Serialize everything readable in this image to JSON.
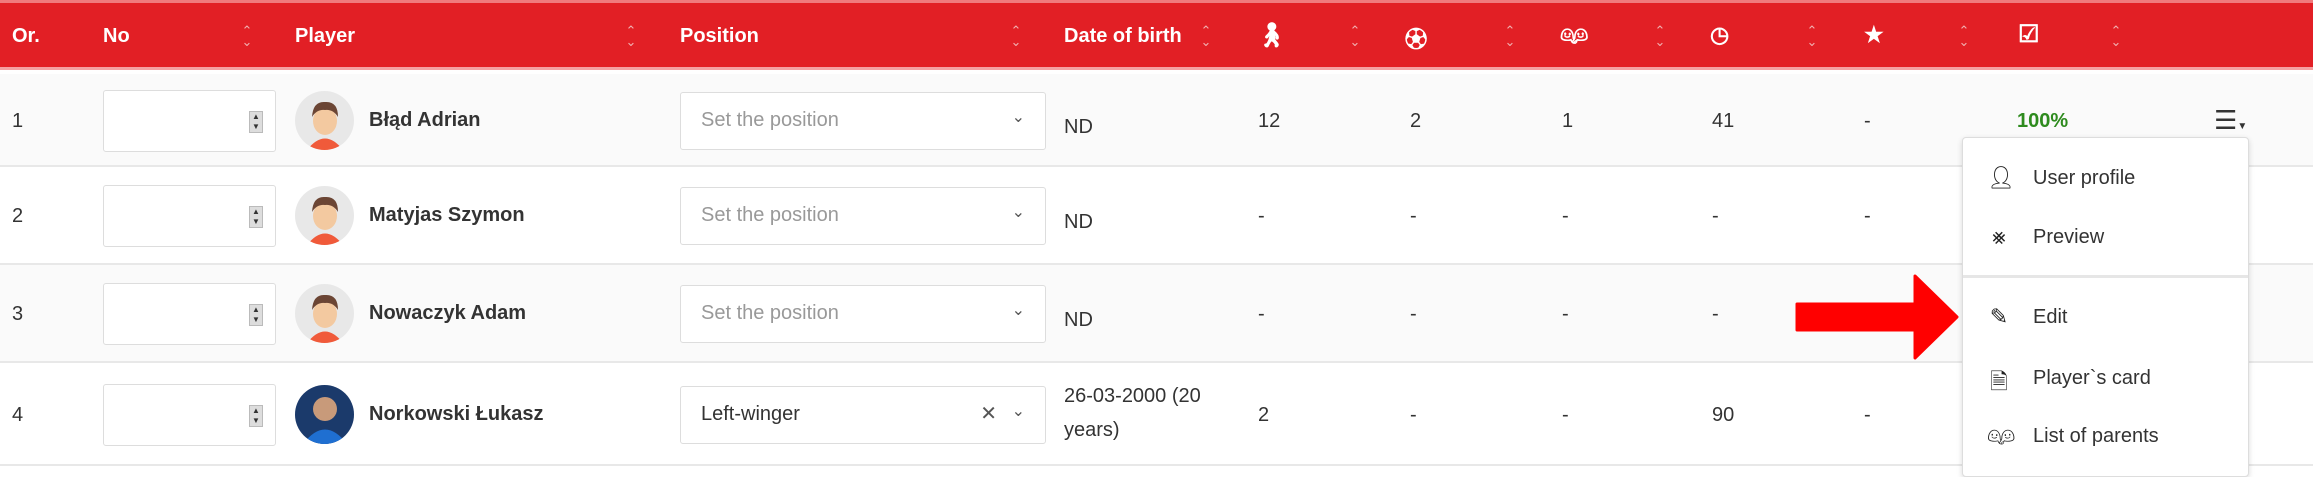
{
  "header": {
    "columns": [
      {
        "label": "Or."
      },
      {
        "label": "No"
      },
      {
        "label": "Player"
      },
      {
        "label": "Position"
      },
      {
        "label": "Date of birth"
      },
      {
        "icon": "person-icon"
      },
      {
        "icon": "ball-icon"
      },
      {
        "icon": "people-icon"
      },
      {
        "icon": "clock-icon"
      },
      {
        "icon": "star-icon"
      },
      {
        "icon": "checkbox-icon"
      }
    ]
  },
  "rows": [
    {
      "order": "1",
      "no": "",
      "player": "Błąd Adrian",
      "position": "",
      "position_placeholder": "Set the position",
      "dob": "ND",
      "stat1": "12",
      "stat2": "2",
      "stat3": "1",
      "stat4": "41",
      "stat5": "-",
      "attendance": "100%"
    },
    {
      "order": "2",
      "no": "",
      "player": "Matyjas Szymon",
      "position": "",
      "position_placeholder": "Set the position",
      "dob": "ND",
      "stat1": "-",
      "stat2": "-",
      "stat3": "-",
      "stat4": "-",
      "stat5": "-",
      "attendance": ""
    },
    {
      "order": "3",
      "no": "",
      "player": "Nowaczyk Adam",
      "position": "",
      "position_placeholder": "Set the position",
      "dob": "ND",
      "stat1": "-",
      "stat2": "-",
      "stat3": "-",
      "stat4": "-",
      "stat5": "",
      "attendance": ""
    },
    {
      "order": "4",
      "no": "",
      "player": "Norkowski Łukasz",
      "position": "Left-winger",
      "position_placeholder": "",
      "dob": "26-03-2000 (20 years)",
      "stat1": "2",
      "stat2": "-",
      "stat3": "-",
      "stat4": "90",
      "stat5": "-",
      "attendance": ""
    }
  ],
  "menu": {
    "items": [
      {
        "label": "User profile",
        "icon": "user-icon"
      },
      {
        "label": "Preview",
        "icon": "chart-line-icon"
      },
      {
        "label": "Edit",
        "icon": "edit-icon"
      },
      {
        "label": "Player`s card",
        "icon": "card-icon"
      },
      {
        "label": "List of parents",
        "icon": "parents-icon"
      }
    ]
  },
  "colors": {
    "header": "#e21f25",
    "attendance": "#2e8b1e",
    "arrow": "#ff0000"
  }
}
